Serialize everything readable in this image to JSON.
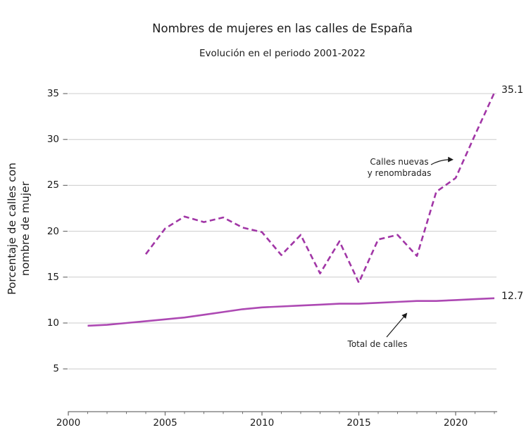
{
  "colors": {
    "grid": "#cccccc",
    "axis": "#707070",
    "text": "#1a1a1a",
    "dashed_line": "#a136a6",
    "solid_line": "#ad49b3"
  },
  "chart_data": {
    "type": "line",
    "title": "Nombres de mujeres en las calles de España",
    "subtitle": "Evolución en el periodo 2001-2022",
    "ylabel": "Porcentaje de calles con\nnombre de mujer",
    "xlabel": "",
    "grid": "horizontal-only",
    "legend_position": "none (inline annotations with arrows)",
    "xlim": [
      2000,
      2022.2
    ],
    "ylim": [
      3,
      36.5
    ],
    "x_ticks": [
      2000,
      2005,
      2010,
      2015,
      2020
    ],
    "x_minor_ticks": [
      2000,
      2022,
      1
    ],
    "y_ticks": [
      5,
      10,
      15,
      20,
      25,
      30,
      35
    ],
    "series": [
      {
        "name": "Calles nuevas y renombradas",
        "line_style": "dashed",
        "color": "#a136a6",
        "end_label": "35.1",
        "x": [
          2004,
          2005,
          2006,
          2007,
          2008,
          2009,
          2010,
          2011,
          2012,
          2013,
          2014,
          2015,
          2016,
          2017,
          2018,
          2019,
          2020,
          2021,
          2022
        ],
        "values": [
          17.5,
          20.3,
          21.6,
          21.0,
          21.5,
          20.4,
          19.9,
          17.4,
          19.6,
          15.4,
          18.9,
          14.4,
          19.1,
          19.6,
          17.3,
          24.3,
          25.8,
          30.5,
          35.1
        ]
      },
      {
        "name": "Total de calles",
        "line_style": "solid",
        "color": "#ad49b3",
        "end_label": "12.7",
        "x": [
          2001,
          2002,
          2003,
          2004,
          2005,
          2006,
          2007,
          2008,
          2009,
          2010,
          2011,
          2012,
          2013,
          2014,
          2015,
          2016,
          2017,
          2018,
          2019,
          2020,
          2021,
          2022
        ],
        "values": [
          9.7,
          9.8,
          10.0,
          10.2,
          10.4,
          10.6,
          10.9,
          11.2,
          11.5,
          11.7,
          11.8,
          11.9,
          12.0,
          12.1,
          12.1,
          12.2,
          12.3,
          12.4,
          12.4,
          12.5,
          12.6,
          12.7
        ]
      }
    ],
    "annotations": [
      {
        "text": "Calles nuevas\ny renombradas",
        "points_to": "Calles nuevas y renombradas"
      },
      {
        "text": "Total de calles",
        "points_to": "Total de calles"
      }
    ]
  }
}
